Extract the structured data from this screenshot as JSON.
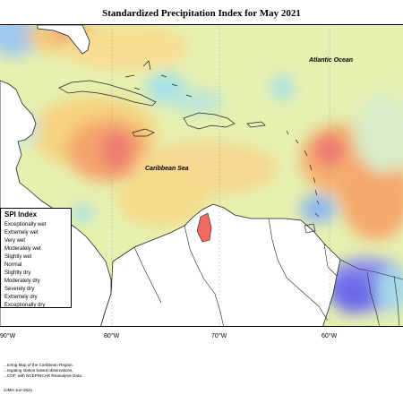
{
  "title": "Standardized Precipitation Index for May 2021",
  "map": {
    "labels": {
      "atlantic": "Atlantic Ocean",
      "caribbean": "Caribbean Sea"
    },
    "longitude_ticks": [
      "90°W",
      "80°W",
      "70°W",
      "60°W"
    ]
  },
  "legend": {
    "title": "SPI Index",
    "items": [
      "Exceptionally wet",
      "Extremely wet",
      "Very wet",
      "Moderately wet",
      "Slightly wet",
      "Normal",
      "Slightly dry",
      "Moderately dry",
      "Severely dry",
      "Extremely dry",
      "Exceptionally dry"
    ]
  },
  "footnote": {
    "line1": "...toring Map of the Caribbean Region.",
    "line2": "...regating station based observations,",
    "line3": "...COF, with NCEP/NCAR Reanalysis Data."
  },
  "credit": "CIMH Jun-2021"
}
